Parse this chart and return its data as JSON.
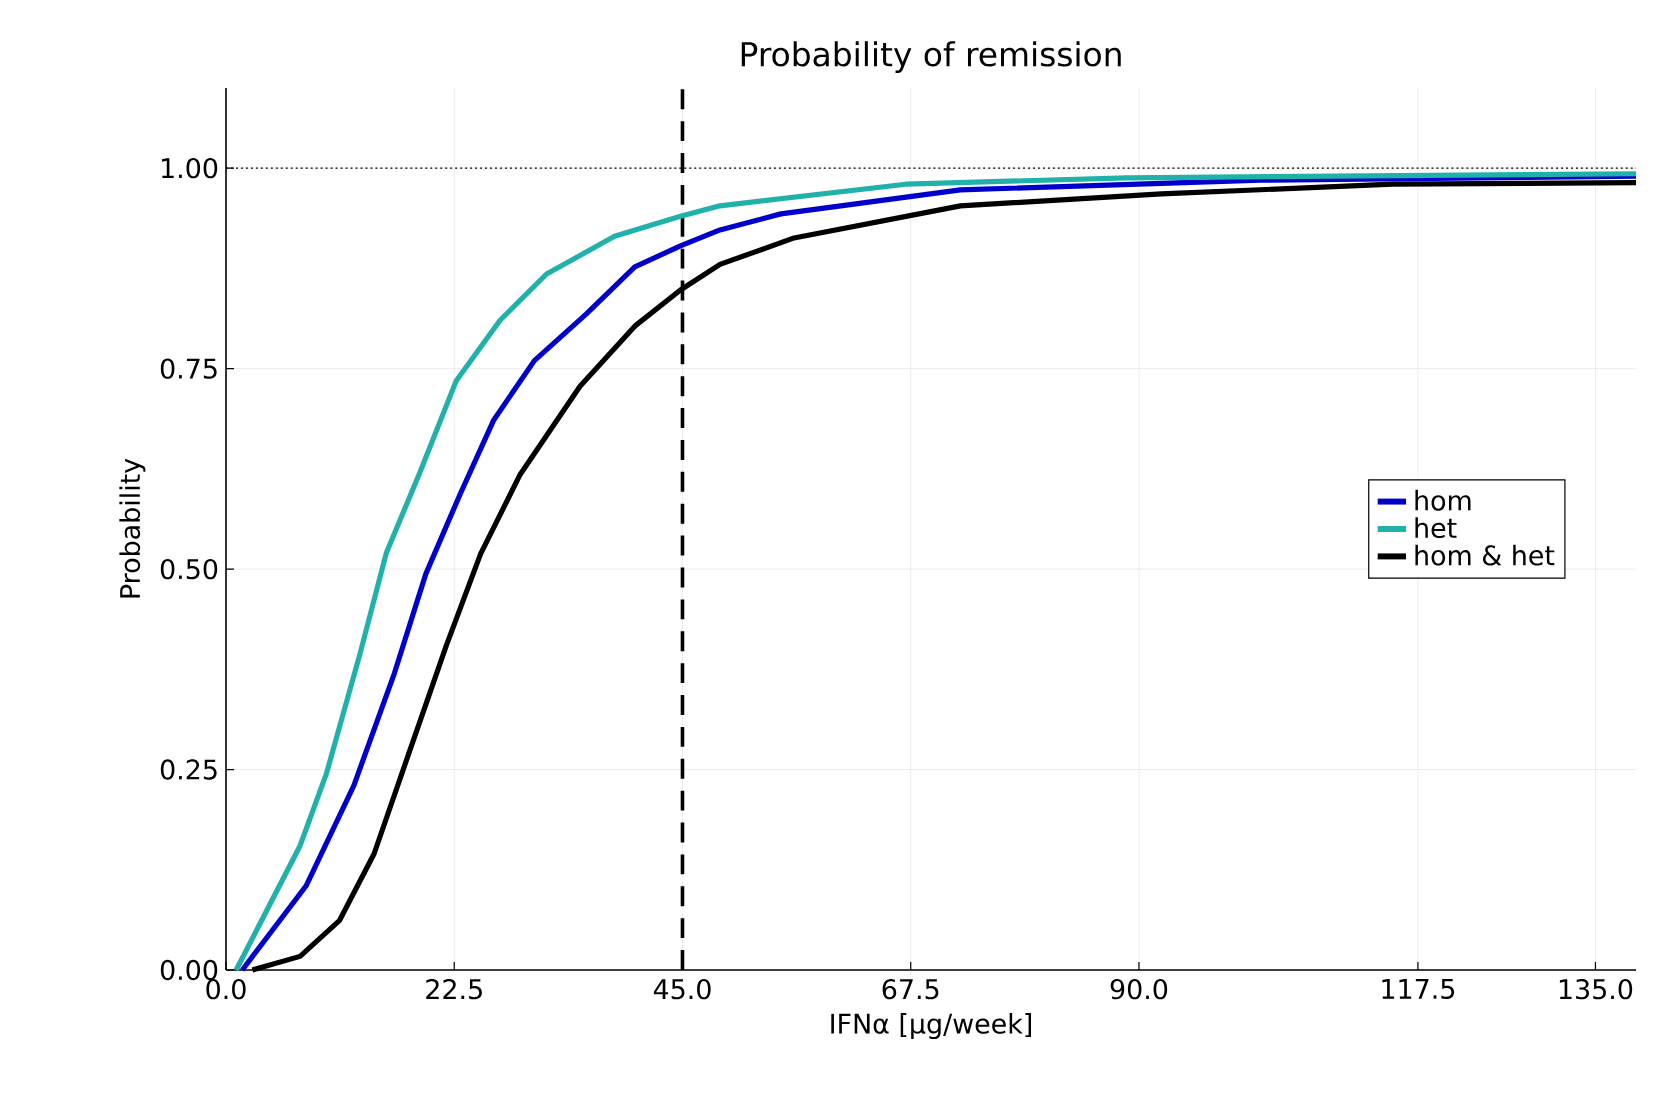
{
  "chart_data": {
    "type": "line",
    "title": "Probability of remission",
    "xlabel": "IFNα [µg/week]",
    "ylabel": "Probability",
    "xlim": [
      0,
      139
    ],
    "ylim": [
      0,
      1.1
    ],
    "xticks": [
      {
        "value": 0,
        "label": "0.0"
      },
      22.5,
      {
        "value": 45,
        "label": "45.0"
      },
      67.5,
      {
        "value": 90,
        "label": "90.0"
      },
      117.5,
      {
        "value": 135,
        "label": "135.0"
      }
    ],
    "yticks": [
      {
        "value": 0,
        "label": "0.00"
      },
      0.25,
      {
        "value": 0.5,
        "label": "0.50"
      },
      0.75,
      {
        "value": 1,
        "label": "1.00"
      }
    ],
    "grid": true,
    "legend": "right",
    "marker": "none",
    "line_style": "solid",
    "ref_lines": [
      {
        "axis": "y",
        "value": 1,
        "line_style": "dotted",
        "color": "#000000"
      },
      {
        "axis": "x",
        "value": 45,
        "line_style": "dashed",
        "color": "#000000"
      }
    ],
    "series": [
      {
        "name": "hom",
        "color": "#0000cd",
        "x": [
          1.6,
          7.9,
          12.6,
          16.6,
          19.7,
          23.1,
          26.4,
          30.4,
          35.5,
          40.3,
          44.8,
          48.7,
          54.7,
          72.4,
          102,
          139
        ],
        "values": [
          0,
          0.105,
          0.23,
          0.37,
          0.494,
          0.594,
          0.686,
          0.76,
          0.818,
          0.877,
          0.903,
          0.923,
          0.943,
          0.973,
          0.985,
          0.99
        ]
      },
      {
        "name": "het",
        "color": "#20b2aa",
        "x": [
          1,
          7.3,
          9.9,
          13.2,
          15.8,
          19.1,
          22.7,
          27,
          31.6,
          38.3,
          44.8,
          48.7,
          67,
          88.8,
          139
        ],
        "values": [
          0,
          0.155,
          0.245,
          0.394,
          0.52,
          0.62,
          0.735,
          0.81,
          0.868,
          0.915,
          0.94,
          0.953,
          0.98,
          0.988,
          0.993
        ]
      },
      {
        "name": "hom & het",
        "color": "#000000",
        "x": [
          2.6,
          7.3,
          11.2,
          14.6,
          17.8,
          21.7,
          25.1,
          29,
          34.9,
          40.3,
          44.8,
          48.7,
          56,
          72.4,
          92.2,
          115,
          139
        ],
        "values": [
          0,
          0.017,
          0.062,
          0.145,
          0.262,
          0.404,
          0.519,
          0.618,
          0.728,
          0.803,
          0.848,
          0.88,
          0.913,
          0.953,
          0.968,
          0.98,
          0.982
        ]
      }
    ]
  }
}
